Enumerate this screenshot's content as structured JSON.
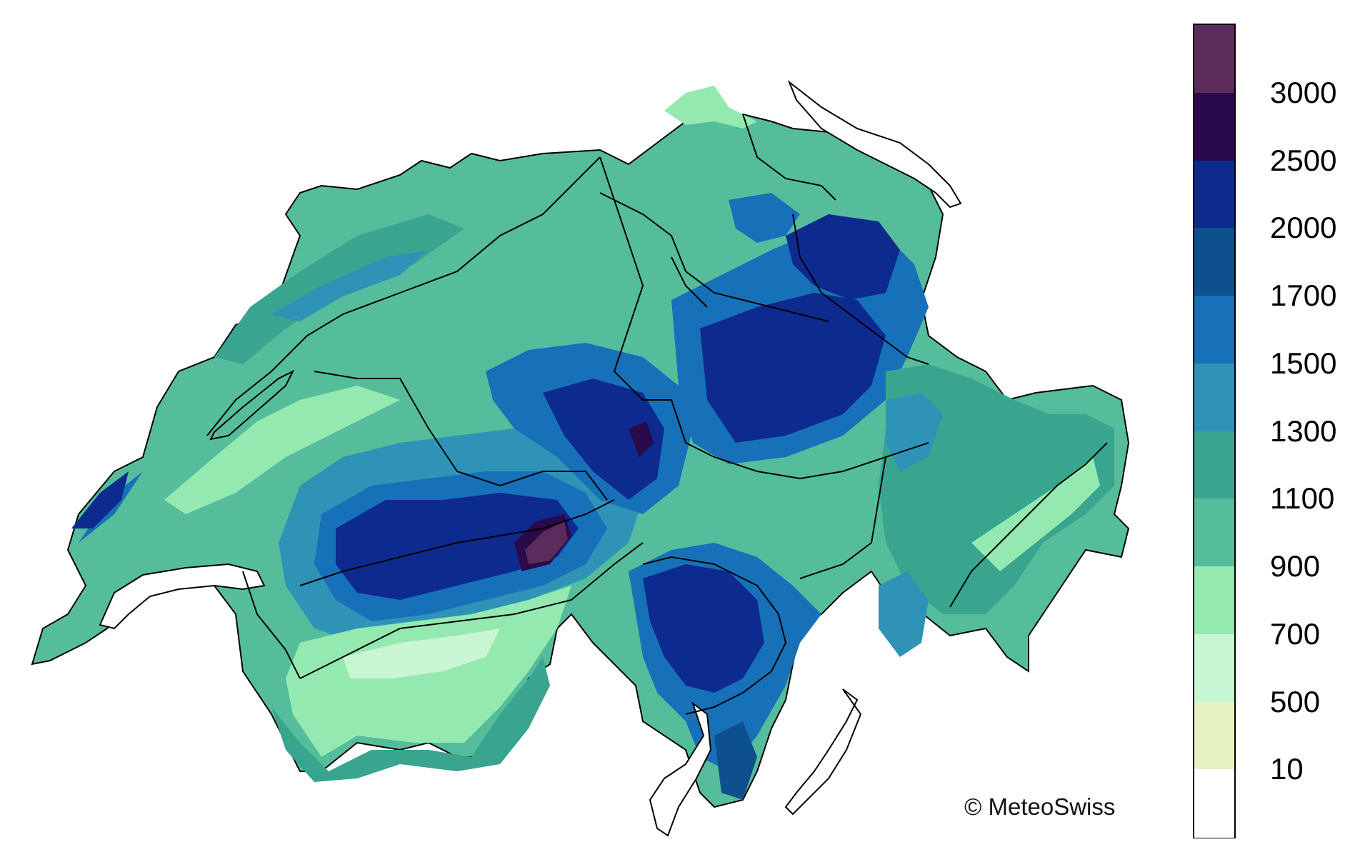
{
  "map": {
    "region": "Switzerland",
    "colors": {
      "border": "#000000",
      "lakes": "#ffffff",
      "band_0_500": "#e6f2c2",
      "band_500_700": "#c8f5d2",
      "band_700_900": "#94e9b0",
      "band_900_1100": "#55bd9b",
      "band_1100_1300": "#3aa58f",
      "band_1300_1500": "#2f93b8",
      "band_1500_1700": "#1771b9",
      "band_1700_2000": "#0e4f8e",
      "band_2000_2500": "#0d2a8f",
      "band_2500_3000": "#2a0a4a",
      "band_3000_plus": "#5b2b5c"
    }
  },
  "legend": {
    "labels": [
      "3000",
      "2500",
      "2000",
      "1700",
      "1500",
      "1300",
      "1100",
      "900",
      "700",
      "500",
      "10"
    ],
    "swatches": [
      "#5b2b5c",
      "#2a0a4a",
      "#0d2a8f",
      "#0e4f8e",
      "#1771b9",
      "#2f93b8",
      "#3aa58f",
      "#55bd9b",
      "#94e9b0",
      "#c8f5d2",
      "#e6f2c2",
      "#ffffff"
    ]
  },
  "credit": "© MeteoSwiss"
}
